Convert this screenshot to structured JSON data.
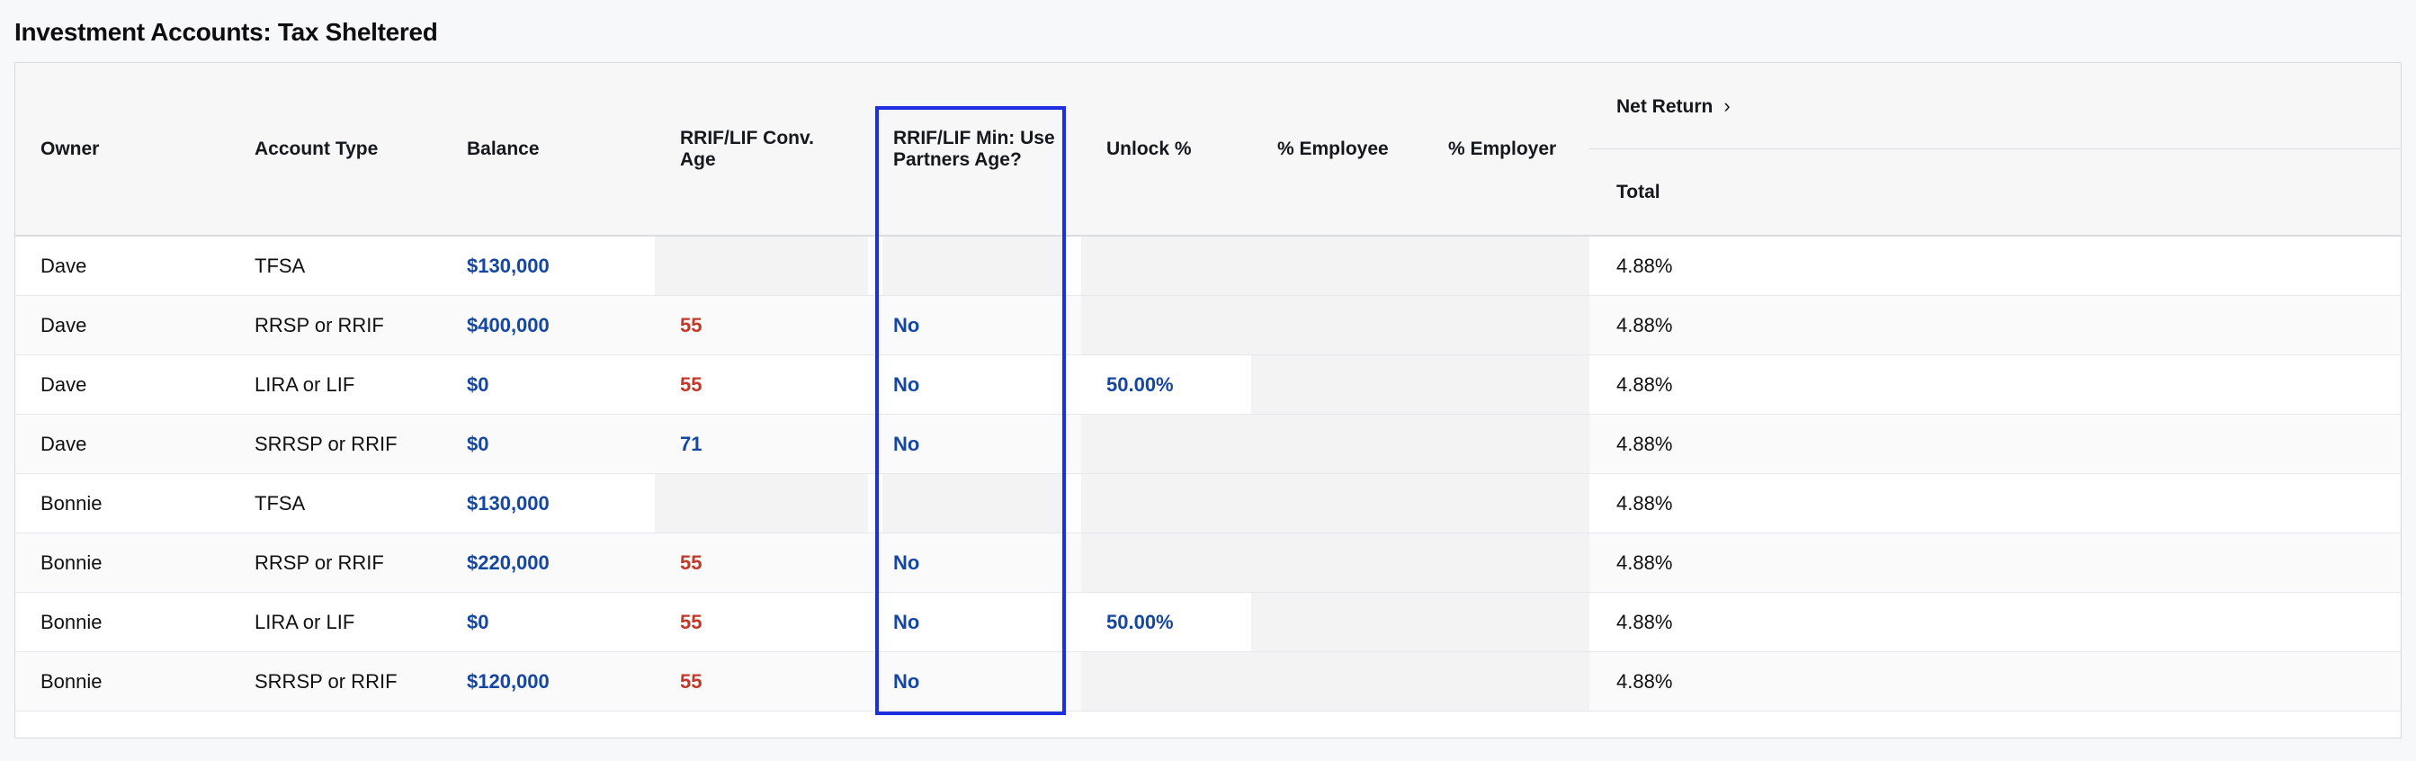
{
  "title": "Investment Accounts: Tax Sheltered",
  "headers": {
    "owner": "Owner",
    "account_type": "Account Type",
    "balance": "Balance",
    "conv_age_line1": "RRIF/LIF Conv.",
    "conv_age_line2": "Age",
    "min_partner_line1": "RRIF/LIF Min: Use",
    "min_partner_line2": "Partners Age?",
    "unlock": "Unlock %",
    "employee": "% Employee",
    "employer": "% Employer",
    "net_return": "Net Return",
    "total": "Total"
  },
  "rows": [
    {
      "owner": "Dave",
      "account_type": "TFSA",
      "balance": "$130,000",
      "conv_age": "",
      "use_partner": "",
      "unlock": "",
      "total": "4.88%"
    },
    {
      "owner": "Dave",
      "account_type": "RRSP or RRIF",
      "balance": "$400,000",
      "conv_age": "55",
      "use_partner": "No",
      "unlock": "",
      "total": "4.88%"
    },
    {
      "owner": "Dave",
      "account_type": "LIRA or LIF",
      "balance": "$0",
      "conv_age": "55",
      "use_partner": "No",
      "unlock": "50.00%",
      "total": "4.88%"
    },
    {
      "owner": "Dave",
      "account_type": "SRRSP or RRIF",
      "balance": "$0",
      "conv_age": "71",
      "use_partner": "No",
      "unlock": "",
      "total": "4.88%"
    },
    {
      "owner": "Bonnie",
      "account_type": "TFSA",
      "balance": "$130,000",
      "conv_age": "",
      "use_partner": "",
      "unlock": "",
      "total": "4.88%"
    },
    {
      "owner": "Bonnie",
      "account_type": "RRSP or RRIF",
      "balance": "$220,000",
      "conv_age": "55",
      "use_partner": "No",
      "unlock": "",
      "total": "4.88%"
    },
    {
      "owner": "Bonnie",
      "account_type": "LIRA or LIF",
      "balance": "$0",
      "conv_age": "55",
      "use_partner": "No",
      "unlock": "50.00%",
      "total": "4.88%"
    },
    {
      "owner": "Bonnie",
      "account_type": "SRRSP or RRIF",
      "balance": "$120,000",
      "conv_age": "55",
      "use_partner": "No",
      "unlock": "",
      "total": "4.88%"
    }
  ],
  "colors": {
    "accent": "#1647a0",
    "age_red": "#c0392b",
    "age_blue": "#1647a0",
    "highlight": "#1f2fe0"
  }
}
